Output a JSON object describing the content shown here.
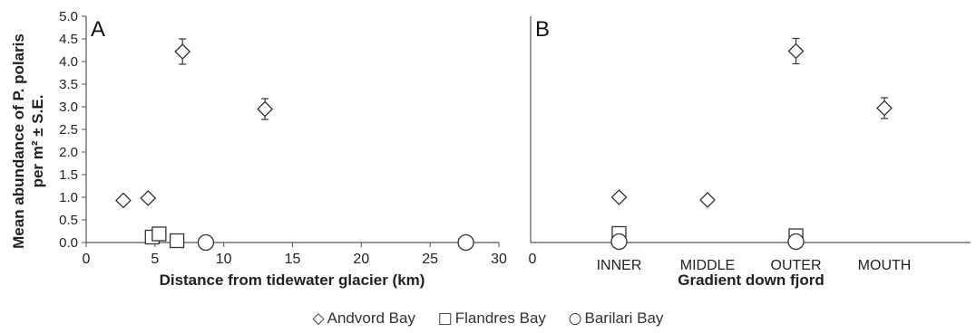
{
  "y_axis_label_line1": "Mean abundance of P. polaris",
  "y_axis_label_line2": "per m² ± S.E.",
  "legend": {
    "items": [
      {
        "name": "Andvord Bay",
        "symbol": "diamond",
        "glyph": "◇"
      },
      {
        "name": "Flandres Bay",
        "symbol": "square",
        "glyph": "□"
      },
      {
        "name": "Barilari Bay",
        "symbol": "circle",
        "glyph": "○"
      }
    ]
  },
  "chart_data": [
    {
      "panel_label": "A",
      "type": "scatter",
      "xlabel": "Distance from tidewater glacier (km)",
      "ylabel": "Mean abundance of P. polaris per m² ± S.E.",
      "xlim": [
        0,
        30
      ],
      "ylim": [
        0,
        5
      ],
      "x_ticks": [
        "0",
        "5",
        "10",
        "15",
        "20",
        "25",
        "30"
      ],
      "y_ticks": [
        "0.0",
        "0.5",
        "1.0",
        "1.5",
        "2.0",
        "2.5",
        "3.0",
        "3.5",
        "4.0",
        "4.5",
        "5.0"
      ],
      "series": [
        {
          "name": "Andvord Bay",
          "marker": "diamond",
          "points": [
            {
              "x": 2.7,
              "y": 0.93,
              "err": 0
            },
            {
              "x": 4.5,
              "y": 0.98,
              "err": 0
            },
            {
              "x": 7.0,
              "y": 4.22,
              "err": 0.28
            },
            {
              "x": 13.0,
              "y": 2.95,
              "err": 0.23
            }
          ]
        },
        {
          "name": "Flandres Bay",
          "marker": "square",
          "points": [
            {
              "x": 4.8,
              "y": 0.12,
              "err": 0
            },
            {
              "x": 5.3,
              "y": 0.19,
              "err": 0
            },
            {
              "x": 6.6,
              "y": 0.04,
              "err": 0
            }
          ]
        },
        {
          "name": "Barilari Bay",
          "marker": "circle",
          "points": [
            {
              "x": 8.7,
              "y": 0.0,
              "err": 0
            },
            {
              "x": 27.6,
              "y": 0.0,
              "err": 0
            }
          ]
        }
      ]
    },
    {
      "panel_label": "B",
      "type": "scatter",
      "xlabel": "Gradient down fjord",
      "xlim_label": "0",
      "categories": [
        "INNER",
        "MIDDLE",
        "OUTER",
        "MOUTH"
      ],
      "ylim": [
        0,
        5
      ],
      "series": [
        {
          "name": "Andvord Bay",
          "marker": "diamond",
          "points": [
            {
              "x": "INNER",
              "y": 1.0,
              "err": 0
            },
            {
              "x": "MIDDLE",
              "y": 0.94,
              "err": 0
            },
            {
              "x": "OUTER",
              "y": 4.23,
              "err": 0.28
            },
            {
              "x": "MOUTH",
              "y": 2.97,
              "err": 0.23
            }
          ]
        },
        {
          "name": "Flandres Bay",
          "marker": "square",
          "points": [
            {
              "x": "INNER",
              "y": 0.2,
              "err": 0
            },
            {
              "x": "OUTER",
              "y": 0.15,
              "err": 0
            }
          ]
        },
        {
          "name": "Barilari Bay",
          "marker": "circle",
          "points": [
            {
              "x": "INNER",
              "y": 0.02,
              "err": 0
            },
            {
              "x": "OUTER",
              "y": 0.02,
              "err": 0
            }
          ]
        }
      ]
    }
  ]
}
